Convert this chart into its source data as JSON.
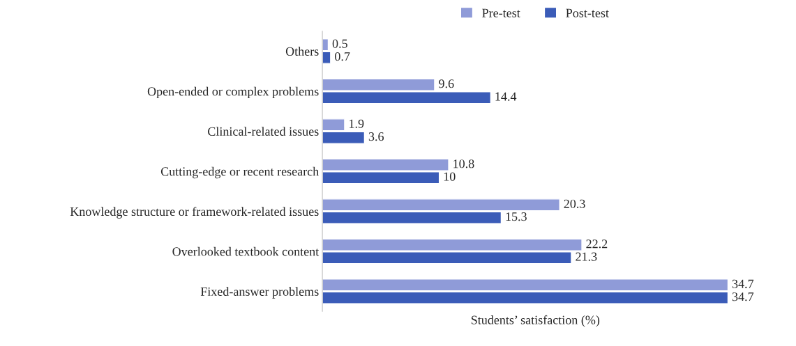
{
  "chart_data": {
    "type": "bar",
    "orientation": "horizontal",
    "xlabel": "Students’ satisfaction (%)",
    "categories": [
      "Others",
      "Open-ended or complex problems",
      "Clinical-related issues",
      "Cutting-edge or recent research",
      "Knowledge structure or framework-related issues",
      "Overlooked textbook content",
      "Fixed-answer problems"
    ],
    "series": [
      {
        "name": "Pre-test",
        "color": "#8f9bd8",
        "values": [
          0.5,
          9.6,
          1.9,
          10.8,
          20.3,
          22.2,
          34.7
        ]
      },
      {
        "name": "Post-test",
        "color": "#3b5cb8",
        "values": [
          0.7,
          14.4,
          3.6,
          10,
          15.3,
          21.3,
          34.7
        ]
      }
    ],
    "data_labels": true,
    "legend": "top",
    "grid": false,
    "tick_labels": "y"
  }
}
